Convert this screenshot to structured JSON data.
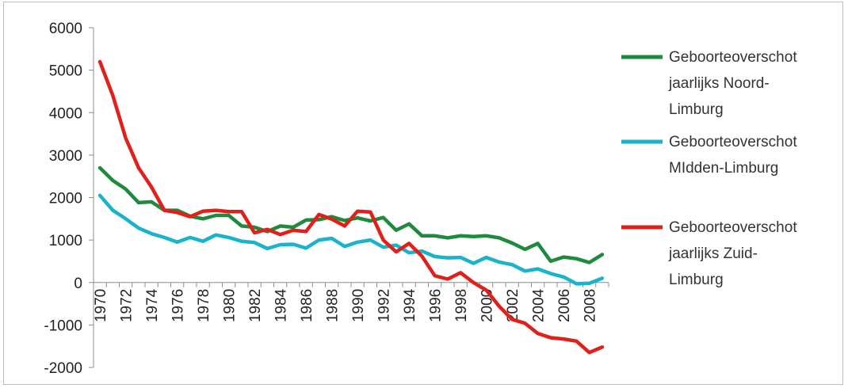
{
  "chart_data": {
    "type": "line",
    "title": "",
    "xlabel": "",
    "ylabel": "",
    "ylim": [
      -2000,
      6000
    ],
    "yticks": [
      6000,
      5000,
      4000,
      3000,
      2000,
      1000,
      0,
      -1000,
      -2000
    ],
    "x": [
      1970,
      1971,
      1972,
      1973,
      1974,
      1975,
      1976,
      1977,
      1978,
      1979,
      1980,
      1981,
      1982,
      1983,
      1984,
      1985,
      1986,
      1987,
      1988,
      1989,
      1990,
      1991,
      1992,
      1993,
      1994,
      1995,
      1996,
      1997,
      1998,
      1999,
      2000,
      2001,
      2002,
      2003,
      2004,
      2005,
      2006,
      2007,
      2008,
      2009
    ],
    "xtick_labels": [
      "1970",
      "1972",
      "1974",
      "1976",
      "1978",
      "1980",
      "1982",
      "1984",
      "1986",
      "1988",
      "1990",
      "1992",
      "1994",
      "1996",
      "1998",
      "2000",
      "2002",
      "2004",
      "2006",
      "2008"
    ],
    "grid": false,
    "legend_position": "right",
    "series": [
      {
        "name": "Geboorteoverschot jaarlijks Noord-Limburg",
        "legend_lines": [
          "Geboorteoverschot",
          "jaarlijks Noord-",
          "Limburg"
        ],
        "color": "#1e8a3c",
        "values": [
          2700,
          2400,
          2200,
          1880,
          1900,
          1700,
          1700,
          1560,
          1500,
          1580,
          1580,
          1330,
          1300,
          1200,
          1330,
          1300,
          1470,
          1480,
          1550,
          1460,
          1520,
          1450,
          1530,
          1230,
          1380,
          1100,
          1100,
          1050,
          1100,
          1080,
          1100,
          1050,
          930,
          780,
          920,
          500,
          600,
          560,
          470,
          660
        ]
      },
      {
        "name": "Geboorteoverschot MIdden-Limburg",
        "legend_lines": [
          "Geboorteoverschot",
          "MIdden-Limburg"
        ],
        "color": "#1ab3cc",
        "values": [
          2050,
          1700,
          1500,
          1280,
          1150,
          1060,
          950,
          1060,
          970,
          1120,
          1060,
          970,
          940,
          800,
          890,
          900,
          810,
          1000,
          1040,
          850,
          950,
          1000,
          830,
          880,
          700,
          740,
          610,
          580,
          590,
          450,
          590,
          480,
          420,
          270,
          320,
          210,
          130,
          -30,
          -20,
          100
        ]
      },
      {
        "name": "Geboorteoverschot jaarlijks Zuid-Limburg",
        "legend_lines": [
          "Geboorteoverschot",
          "jaarlijks Zuid-",
          "Limburg"
        ],
        "color": "#e0201b",
        "values": [
          5200,
          4400,
          3400,
          2700,
          2250,
          1700,
          1650,
          1550,
          1680,
          1700,
          1670,
          1670,
          1170,
          1250,
          1130,
          1230,
          1200,
          1600,
          1490,
          1330,
          1680,
          1660,
          1000,
          720,
          920,
          620,
          160,
          80,
          230,
          0,
          -180,
          -560,
          -870,
          -960,
          -1200,
          -1300,
          -1330,
          -1380,
          -1650,
          -1520
        ]
      }
    ]
  }
}
